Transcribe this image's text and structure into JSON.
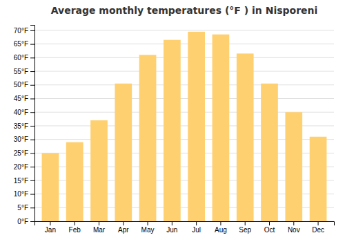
{
  "chart_data": {
    "type": "bar",
    "title": "Average monthly temperatures (°F ) in Nisporeni",
    "categories": [
      "Jan",
      "Feb",
      "Mar",
      "Apr",
      "May",
      "Jun",
      "Jul",
      "Aug",
      "Sep",
      "Oct",
      "Nov",
      "Dec"
    ],
    "values": [
      25,
      29,
      37,
      50.5,
      61,
      66.5,
      69.5,
      68.5,
      61.5,
      50.5,
      40,
      31
    ],
    "color": "#FFD070",
    "ylim": [
      0,
      72
    ],
    "yticks": [
      {
        "value": 0,
        "label": "0°F"
      },
      {
        "value": 5,
        "label": "5°F"
      },
      {
        "value": 10,
        "label": "10°F"
      },
      {
        "value": 15,
        "label": "15°F"
      },
      {
        "value": 20,
        "label": "20°F"
      },
      {
        "value": 25,
        "label": "25°F"
      },
      {
        "value": 30,
        "label": "30°F"
      },
      {
        "value": 35,
        "label": "35°F"
      },
      {
        "value": 40,
        "label": "40°F"
      },
      {
        "value": 45,
        "label": "45°F"
      },
      {
        "value": 50,
        "label": "50°F"
      },
      {
        "value": 55,
        "label": "55°F"
      },
      {
        "value": 60,
        "label": "60°F"
      },
      {
        "value": 65,
        "label": "65°F"
      },
      {
        "value": 70,
        "label": "70°F"
      }
    ],
    "grid": true
  }
}
